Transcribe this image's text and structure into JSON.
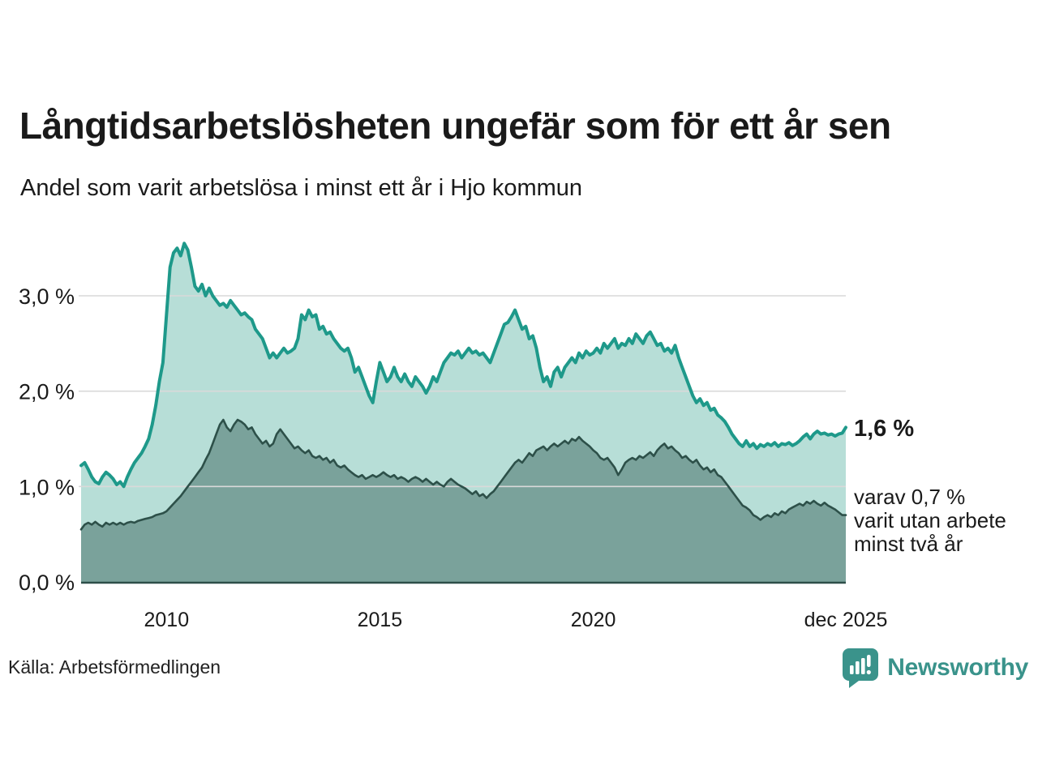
{
  "page": {
    "title": "Långtidsarbetslösheten ungefär som för ett år sen",
    "subtitle": "Andel som varit arbetslösa i minst ett år i Hjo kommun",
    "source": "Källa: Arbetsförmedlingen",
    "brand": "Newsworthy"
  },
  "colors": {
    "series1_line": "#1e998a",
    "series1_fill": "#b7ded7",
    "series2_line": "#2d5049",
    "series2_fill": "#7aa29b",
    "grid": "#d9d9d9",
    "baseline": "#2d4f49",
    "text": "#1a1a1a",
    "brand_teal": "#3a938b"
  },
  "chart_data": {
    "type": "area",
    "title": "Långtidsarbetslösheten ungefär som för ett år sen",
    "subtitle": "Andel som varit arbetslösa i minst ett år i Hjo kommun",
    "x_monthly_from": "2008-01",
    "x_monthly_to": "2025-12",
    "ylim": [
      0,
      3.75
    ],
    "grid": "horizontal",
    "y_ticks": [
      {
        "label": "0,0 %",
        "value": 0
      },
      {
        "label": "1,0 %",
        "value": 1
      },
      {
        "label": "2,0 %",
        "value": 2
      },
      {
        "label": "3,0 %",
        "value": 3
      }
    ],
    "x_ticks": [
      {
        "label": "2010",
        "month_index": 24
      },
      {
        "label": "2015",
        "month_index": 84
      },
      {
        "label": "2020",
        "month_index": 144
      },
      {
        "label": "dec 2025",
        "month_index": 215
      }
    ],
    "series": [
      {
        "name": "Andel arbetslösa minst ett år",
        "last_value": 1.6,
        "values": [
          1.22,
          1.25,
          1.18,
          1.1,
          1.05,
          1.03,
          1.1,
          1.15,
          1.12,
          1.08,
          1.02,
          1.05,
          1.0,
          1.1,
          1.18,
          1.25,
          1.3,
          1.35,
          1.42,
          1.5,
          1.65,
          1.85,
          2.1,
          2.3,
          2.8,
          3.3,
          3.45,
          3.5,
          3.42,
          3.55,
          3.48,
          3.3,
          3.1,
          3.05,
          3.12,
          3.0,
          3.08,
          3.0,
          2.95,
          2.9,
          2.92,
          2.88,
          2.95,
          2.9,
          2.85,
          2.8,
          2.82,
          2.78,
          2.75,
          2.65,
          2.6,
          2.55,
          2.45,
          2.35,
          2.4,
          2.35,
          2.4,
          2.45,
          2.4,
          2.42,
          2.45,
          2.55,
          2.8,
          2.75,
          2.85,
          2.78,
          2.8,
          2.65,
          2.68,
          2.6,
          2.62,
          2.55,
          2.5,
          2.45,
          2.42,
          2.45,
          2.35,
          2.2,
          2.25,
          2.15,
          2.05,
          1.95,
          1.88,
          2.1,
          2.3,
          2.2,
          2.1,
          2.15,
          2.25,
          2.15,
          2.1,
          2.18,
          2.1,
          2.05,
          2.15,
          2.1,
          2.05,
          1.98,
          2.05,
          2.15,
          2.1,
          2.2,
          2.3,
          2.35,
          2.4,
          2.38,
          2.42,
          2.35,
          2.4,
          2.45,
          2.4,
          2.42,
          2.38,
          2.4,
          2.35,
          2.3,
          2.4,
          2.5,
          2.6,
          2.7,
          2.72,
          2.78,
          2.85,
          2.75,
          2.65,
          2.68,
          2.55,
          2.58,
          2.45,
          2.25,
          2.1,
          2.15,
          2.05,
          2.2,
          2.25,
          2.15,
          2.25,
          2.3,
          2.35,
          2.3,
          2.4,
          2.35,
          2.42,
          2.38,
          2.4,
          2.45,
          2.4,
          2.5,
          2.45,
          2.5,
          2.55,
          2.45,
          2.5,
          2.48,
          2.55,
          2.5,
          2.6,
          2.55,
          2.5,
          2.58,
          2.62,
          2.55,
          2.48,
          2.5,
          2.42,
          2.45,
          2.4,
          2.48,
          2.35,
          2.25,
          2.15,
          2.05,
          1.95,
          1.88,
          1.92,
          1.85,
          1.88,
          1.8,
          1.82,
          1.75,
          1.72,
          1.68,
          1.62,
          1.55,
          1.5,
          1.45,
          1.42,
          1.48,
          1.42,
          1.45,
          1.4,
          1.44,
          1.42,
          1.45,
          1.43,
          1.46,
          1.42,
          1.45,
          1.44,
          1.46,
          1.43,
          1.45,
          1.48,
          1.52,
          1.55,
          1.5,
          1.55,
          1.58,
          1.55,
          1.56,
          1.54,
          1.55,
          1.53,
          1.55,
          1.56,
          1.62
        ]
      },
      {
        "name": "Varav utan arbete minst två år",
        "last_value": 0.7,
        "values": [
          0.55,
          0.6,
          0.62,
          0.6,
          0.63,
          0.6,
          0.58,
          0.62,
          0.6,
          0.62,
          0.6,
          0.62,
          0.6,
          0.62,
          0.63,
          0.62,
          0.64,
          0.65,
          0.66,
          0.67,
          0.68,
          0.7,
          0.71,
          0.72,
          0.74,
          0.78,
          0.82,
          0.86,
          0.9,
          0.95,
          1.0,
          1.05,
          1.1,
          1.15,
          1.2,
          1.28,
          1.35,
          1.45,
          1.55,
          1.65,
          1.7,
          1.62,
          1.58,
          1.65,
          1.7,
          1.68,
          1.65,
          1.6,
          1.62,
          1.55,
          1.5,
          1.45,
          1.48,
          1.42,
          1.45,
          1.55,
          1.6,
          1.55,
          1.5,
          1.45,
          1.4,
          1.42,
          1.38,
          1.35,
          1.38,
          1.32,
          1.3,
          1.32,
          1.28,
          1.3,
          1.25,
          1.28,
          1.22,
          1.2,
          1.22,
          1.18,
          1.15,
          1.12,
          1.1,
          1.12,
          1.08,
          1.1,
          1.12,
          1.1,
          1.12,
          1.15,
          1.12,
          1.1,
          1.12,
          1.08,
          1.1,
          1.08,
          1.05,
          1.08,
          1.1,
          1.08,
          1.05,
          1.08,
          1.05,
          1.02,
          1.05,
          1.02,
          1.0,
          1.05,
          1.08,
          1.05,
          1.02,
          1.0,
          0.98,
          0.95,
          0.92,
          0.95,
          0.9,
          0.92,
          0.88,
          0.92,
          0.95,
          1.0,
          1.05,
          1.1,
          1.15,
          1.2,
          1.25,
          1.28,
          1.25,
          1.3,
          1.35,
          1.32,
          1.38,
          1.4,
          1.42,
          1.38,
          1.42,
          1.45,
          1.42,
          1.45,
          1.48,
          1.45,
          1.5,
          1.48,
          1.52,
          1.48,
          1.45,
          1.42,
          1.38,
          1.35,
          1.3,
          1.28,
          1.3,
          1.25,
          1.2,
          1.12,
          1.18,
          1.25,
          1.28,
          1.3,
          1.28,
          1.32,
          1.3,
          1.33,
          1.36,
          1.32,
          1.38,
          1.42,
          1.45,
          1.4,
          1.42,
          1.38,
          1.35,
          1.3,
          1.32,
          1.28,
          1.25,
          1.28,
          1.22,
          1.18,
          1.2,
          1.15,
          1.18,
          1.12,
          1.1,
          1.05,
          1.0,
          0.95,
          0.9,
          0.85,
          0.8,
          0.78,
          0.75,
          0.7,
          0.68,
          0.65,
          0.68,
          0.7,
          0.68,
          0.72,
          0.7,
          0.74,
          0.72,
          0.76,
          0.78,
          0.8,
          0.82,
          0.8,
          0.84,
          0.82,
          0.85,
          0.82,
          0.8,
          0.83,
          0.8,
          0.78,
          0.76,
          0.73,
          0.7,
          0.7
        ]
      }
    ],
    "annotations": {
      "last_value_label": "1,6 %",
      "secondary_lines": [
        "varav 0,7 %",
        "varit utan arbete",
        "minst två år"
      ]
    }
  }
}
